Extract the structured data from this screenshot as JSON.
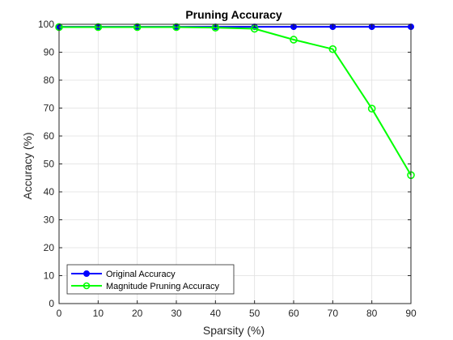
{
  "chart_data": {
    "type": "line",
    "title": "Pruning Accuracy",
    "xlabel": "Sparsity (%)",
    "ylabel": "Accuracy (%)",
    "xlim": [
      0,
      90
    ],
    "ylim": [
      0,
      100
    ],
    "xticks": [
      0,
      10,
      20,
      30,
      40,
      50,
      60,
      70,
      80,
      90
    ],
    "yticks": [
      0,
      10,
      20,
      30,
      40,
      50,
      60,
      70,
      80,
      90,
      100
    ],
    "grid": true,
    "legend_position": "bottom-left",
    "x": [
      0,
      10,
      20,
      30,
      40,
      50,
      60,
      70,
      80,
      90
    ],
    "series": [
      {
        "name": "Original Accuracy",
        "color": "#0000ff",
        "marker": "filled-circle",
        "values": [
          99.1,
          99.1,
          99.1,
          99.1,
          99.1,
          99.1,
          99.1,
          99.1,
          99.1,
          99.1
        ]
      },
      {
        "name": "Magnitude Pruning Accuracy",
        "color": "#00ff00",
        "marker": "open-circle",
        "values": [
          99.0,
          99.0,
          99.0,
          99.0,
          98.8,
          98.4,
          94.5,
          91.1,
          69.8,
          46.0
        ]
      }
    ]
  }
}
